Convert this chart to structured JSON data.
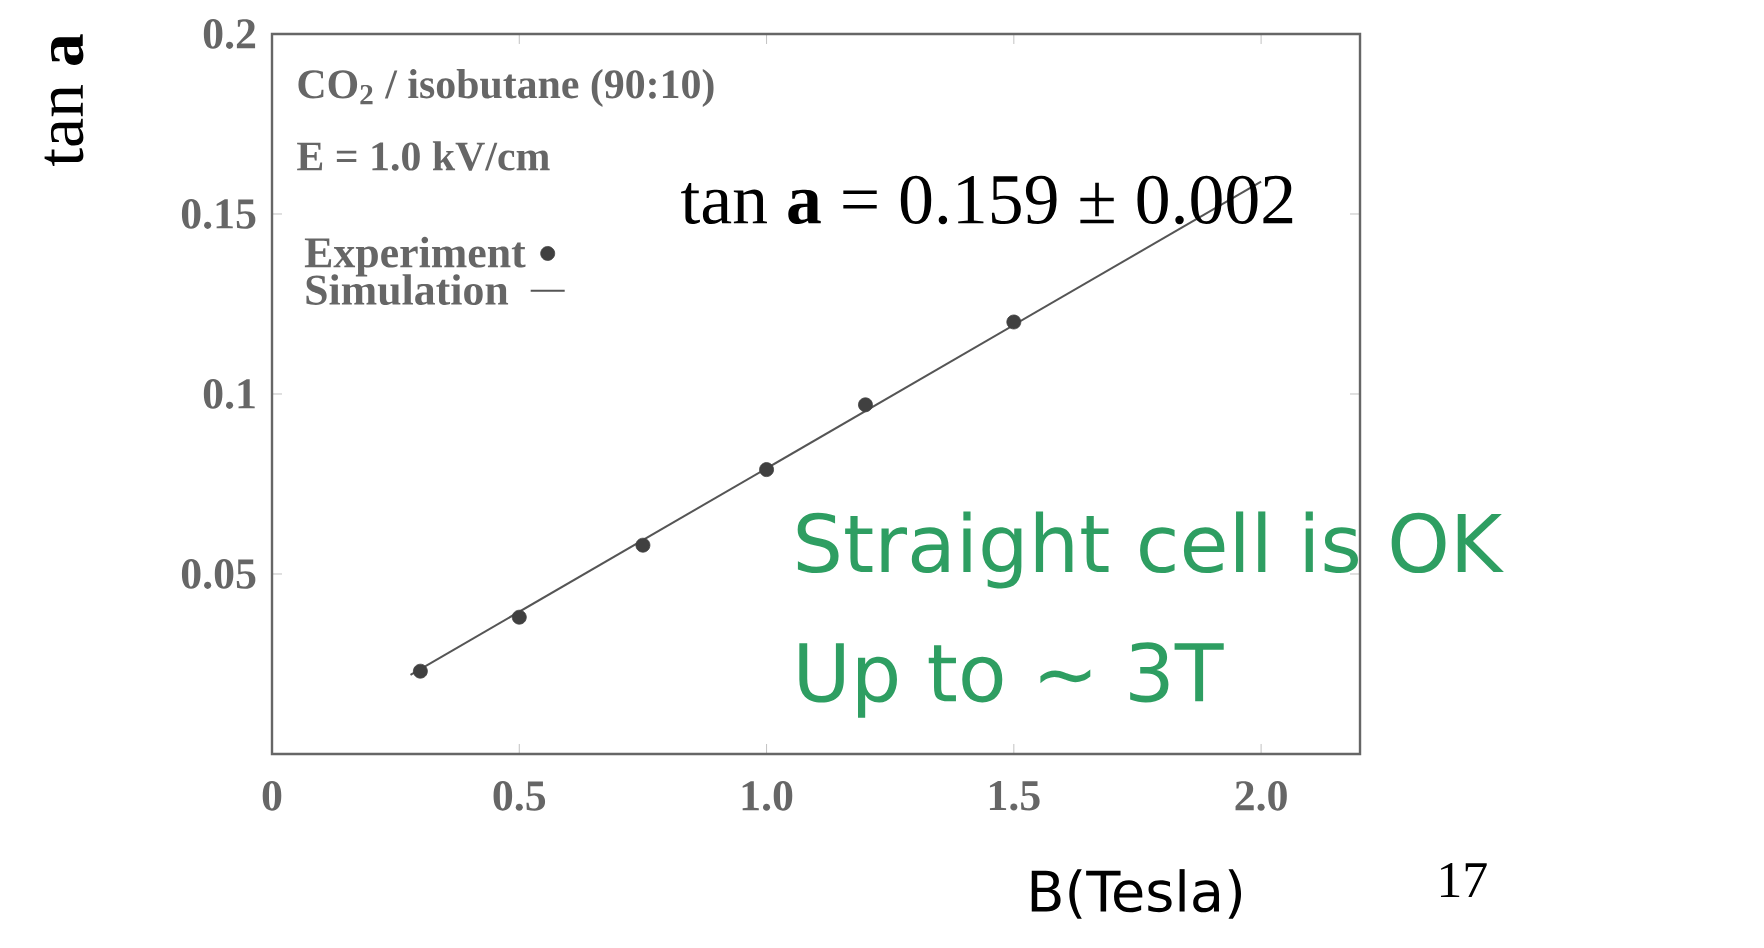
{
  "chart_data": {
    "type": "scatter",
    "xlabel": "B(Tesla)",
    "ylabel": "tan **a**",
    "xlim": [
      0,
      2.2
    ],
    "ylim": [
      0,
      0.2
    ],
    "xticks": [
      0,
      0.5,
      {
        "value": 1,
        "label": "1.0"
      },
      1.5,
      {
        "value": 2,
        "label": "2.0"
      }
    ],
    "yticks": [
      0.05,
      0.1,
      0.15,
      0.2
    ],
    "legend": "top left",
    "series": [
      {
        "name": "Experiment",
        "marker": "circle",
        "color": "#404040",
        "x": [
          0.3,
          0.5,
          0.75,
          1.0,
          1.2,
          1.5
        ],
        "values": [
          0.023,
          0.038,
          0.058,
          0.079,
          0.097,
          0.12
        ]
      },
      {
        "name": "Simulation",
        "type": "line",
        "color": "#555555",
        "x": [
          0.28,
          2.0
        ],
        "values": [
          0.022,
          0.159
        ]
      }
    ],
    "annotations": [
      "CO$_{2}$ / isobutane (90:10)",
      "E = 1.0 kV/cm",
      "tan **a** = 0.159 ± 0.002",
      "Straight cell is OK",
      "Up to ~ 3T",
      "17"
    ]
  }
}
